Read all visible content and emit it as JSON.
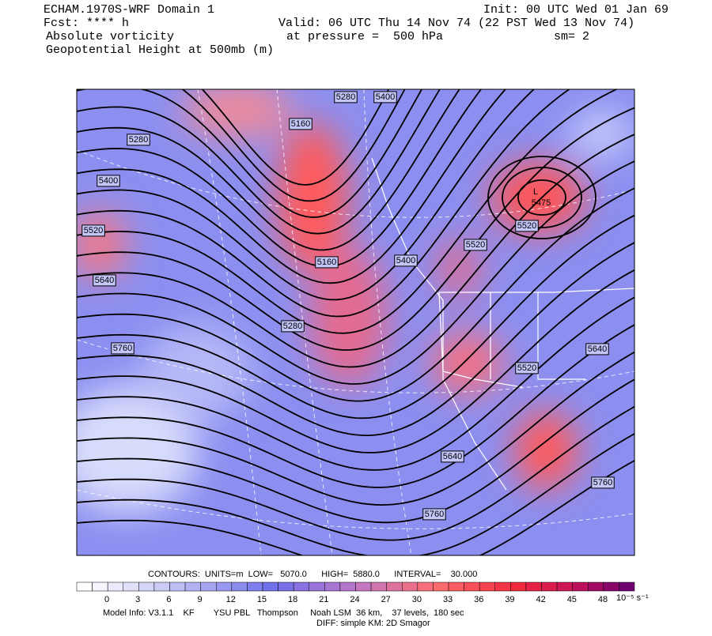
{
  "header": {
    "model": "ECHAM.1970S-WRF Domain 1",
    "forecast": "Fcst: **** h",
    "field": "Absolute vorticity",
    "contour_field": "Geopotential Height at 500mb (m)",
    "init": "Init: 00 UTC Wed 01 Jan 69",
    "valid": "Valid: 06 UTC Thu 14 Nov 74 (22 PST Wed 13 Nov 74)",
    "pressure": "at pressure =  500 hPa",
    "smoothing": "sm= 2"
  },
  "map": {
    "contour_labels": [
      5280,
      5400,
      5160,
      5280,
      5400,
      5520,
      5640,
      5160,
      5400,
      5520,
      5280,
      5760,
      5520,
      5640,
      5520,
      5640,
      5760,
      5760
    ],
    "low": {
      "symbol": "L",
      "value": 5475
    }
  },
  "colorbar": {
    "ticks": [
      0,
      3,
      6,
      9,
      12,
      15,
      18,
      21,
      24,
      27,
      30,
      33,
      36,
      39,
      42,
      45,
      48
    ],
    "units": "10⁻⁵ s⁻¹"
  },
  "footer": {
    "contours": "CONTOURS:  UNITS=m  LOW=   5070.0      HIGH=  5880.0      INTERVAL=    30.000",
    "model_info": "Model Info: V3.1.1    KF        YSU PBL   Thompson     Noah LSM  36 km,    37 levels,  180 sec",
    "diffusion": "DIFF: simple KM: 2D Smagor"
  }
}
